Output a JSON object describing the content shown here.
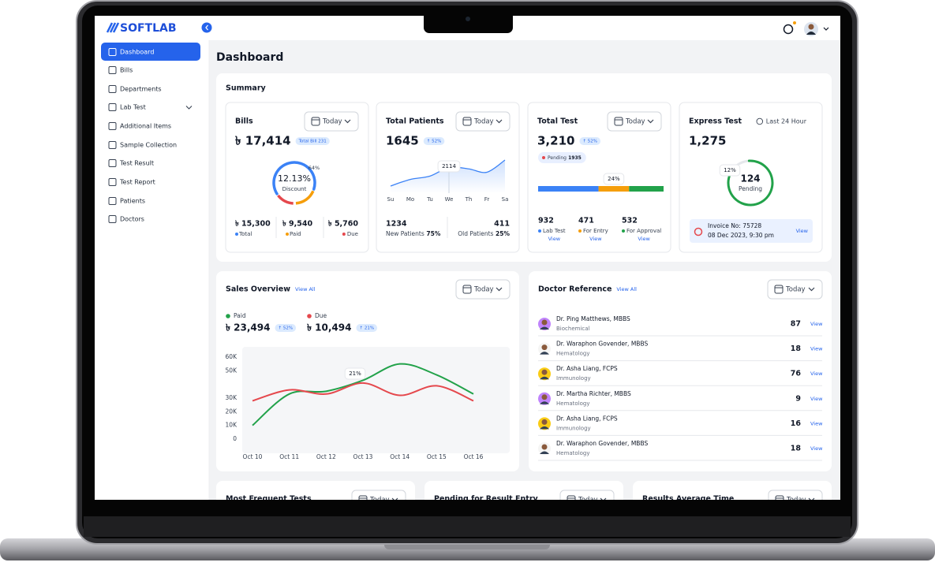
{
  "brand": "SOFTLAB",
  "sidebar": {
    "items": [
      "Dashboard",
      "Bills",
      "Departments",
      "Lab Test",
      "Additional Items",
      "Sample Collection",
      "Test Result",
      "Test Report",
      "Patients",
      "Doctors"
    ]
  },
  "header": {
    "title": "Dashboard"
  },
  "summary": {
    "title": "Summary",
    "bills": {
      "title": "Bills",
      "period": "Today",
      "amount": "৳ 17,414",
      "badge": "Total Bill 231",
      "gauge": {
        "share": {
          "value": 64,
          "label": "64%"
        },
        "value": "12.13%",
        "caption": "Discount"
      },
      "stats": [
        {
          "value": "৳ 15,300",
          "label": "Total",
          "color": "#3b82f6"
        },
        {
          "value": "৳ 9,540",
          "label": "Paid",
          "color": "#f59e0b"
        },
        {
          "value": "৳ 5,760",
          "label": "Due",
          "color": "#e5484d"
        }
      ]
    },
    "patients": {
      "title": "Total Patients",
      "period": "Today",
      "value": 1645,
      "badge": "↑ 52%",
      "chart": {
        "type": "area",
        "color": "#3b82f6",
        "categories": [
          "Su",
          "Mo",
          "Tu",
          "We",
          "Th",
          "Fr",
          "Sa"
        ],
        "values": [
          1780,
          1900,
          1960,
          2114,
          2090,
          2030,
          2250
        ],
        "annotation": 2114
      },
      "new": {
        "value": 1234,
        "label": "New Patients",
        "share": "75%"
      },
      "old": {
        "value": 411,
        "label": "Old Patients",
        "share": "25%"
      }
    },
    "total_test": {
      "title": "Total Test",
      "period": "Today",
      "value": "3,210",
      "badge": "↑ 52%",
      "pending": {
        "label": "Pending",
        "value": 1935
      },
      "bar_label": "24%",
      "stats": [
        {
          "value": 932,
          "label": "Lab Test",
          "color": "#3b82f6",
          "action": "View"
        },
        {
          "value": 471,
          "label": "For Entry",
          "color": "#f59e0b",
          "action": "View"
        },
        {
          "value": 532,
          "label": "For Approval",
          "color": "#22a24a",
          "action": "View"
        }
      ]
    },
    "express": {
      "title": "Express Test",
      "range": "Last 24 Hour",
      "value": "1,275",
      "ring": {
        "share": {
          "value": 12,
          "label": "12%"
        },
        "value": 124,
        "caption": "Pending"
      },
      "invoice": {
        "number": "Invoice No: 75728",
        "date": "08 Dec 2023, 9:30 pm",
        "action": "View"
      }
    }
  },
  "sales": {
    "title": "Sales Overview",
    "link": "View All",
    "period": "Today",
    "chart_data": {
      "type": "line",
      "categories": [
        "Oct 10",
        "Oct 11",
        "Oct 12",
        "Oct 13",
        "Oct 14",
        "Oct 15",
        "Oct 16"
      ],
      "series": [
        {
          "name": "Paid",
          "color": "#22a24a",
          "amount": "৳ 23,494",
          "badge": "↑ 52%",
          "values": [
            10000,
            33000,
            35000,
            43000,
            55000,
            47000,
            33000
          ]
        },
        {
          "name": "Due",
          "color": "#e5484d",
          "amount": "৳ 10,494",
          "badge": "↑ 21%",
          "values": [
            28000,
            36000,
            33000,
            41000,
            32000,
            39000,
            28000
          ]
        }
      ],
      "ylim": [
        0,
        60000
      ],
      "yticks": [
        0,
        {
          "value": 10000,
          "label": "10K"
        },
        {
          "value": 20000,
          "label": "20K"
        },
        {
          "value": 30000,
          "label": "30K"
        },
        {
          "value": 50000,
          "label": "50K"
        },
        {
          "value": 60000,
          "label": "60K"
        }
      ],
      "annotation": "21%"
    }
  },
  "doctors": {
    "title": "Doctor Reference",
    "link": "View All",
    "period": "Today",
    "rows": [
      {
        "name": "Dr. Ping Matthews, MBBS",
        "department": "Biochemical",
        "count": 87,
        "action": "View"
      },
      {
        "name": "Dr. Waraphon Govender, MBBS",
        "department": "Hematology",
        "count": 18,
        "action": "View"
      },
      {
        "name": "Dr. Asha Liang, FCPS",
        "department": "Immunology",
        "count": 76,
        "action": "View"
      },
      {
        "name": "Dr. Martha Richter, MBBS",
        "department": "Hematology",
        "count": 9,
        "action": "View"
      },
      {
        "name": "Dr. Asha Liang, FCPS",
        "department": "Immunology",
        "count": 16,
        "action": "View"
      },
      {
        "name": "Dr. Waraphon Govender, MBBS",
        "department": "Hematology",
        "count": 18,
        "action": "View"
      }
    ]
  },
  "widgets": [
    {
      "title": "Most Frequent Tests",
      "period": "Today"
    },
    {
      "title": "Pending for Result Entry",
      "period": "Today"
    },
    {
      "title": "Results Average Time",
      "period": "Today"
    }
  ]
}
